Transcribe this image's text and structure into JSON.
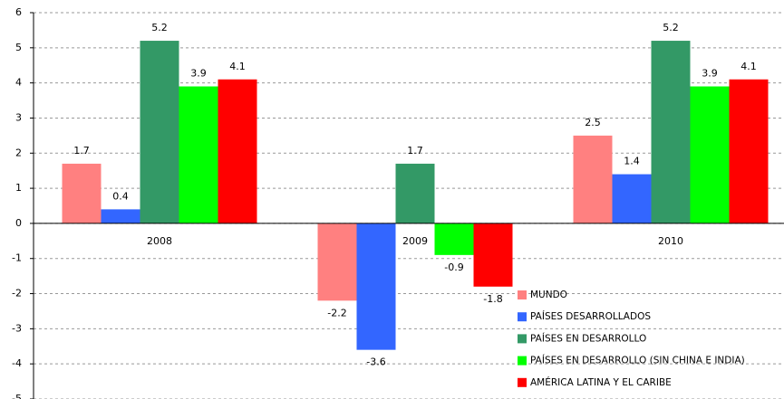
{
  "chart_data": {
    "type": "bar",
    "categories": [
      "2008",
      "2009",
      "2010"
    ],
    "series": [
      {
        "name": "MUNDO",
        "color": "#ff8080",
        "values": [
          1.7,
          -2.2,
          2.5
        ]
      },
      {
        "name": "PAÍSES DESARROLLADOS",
        "color": "#3366ff",
        "values": [
          0.4,
          -3.6,
          1.4
        ]
      },
      {
        "name": "PAÍSES EN DESARROLLO",
        "color": "#339966",
        "values": [
          5.2,
          1.7,
          5.2
        ]
      },
      {
        "name": "PAÍSES EN DESARROLLO (SIN CHINA E INDIA)",
        "color": "#00ff00",
        "values": [
          3.9,
          -0.9,
          3.9
        ]
      },
      {
        "name": "AMÉRICA LATINA Y EL CARIBE",
        "color": "#ff0000",
        "values": [
          4.1,
          -1.8,
          4.1
        ]
      }
    ],
    "ylim": [
      -5,
      6
    ],
    "yticks": [
      -5,
      -4,
      -3,
      -2,
      -1,
      0,
      1,
      2,
      3,
      4,
      5,
      6
    ],
    "grid": true,
    "legend": "bottom-right"
  }
}
